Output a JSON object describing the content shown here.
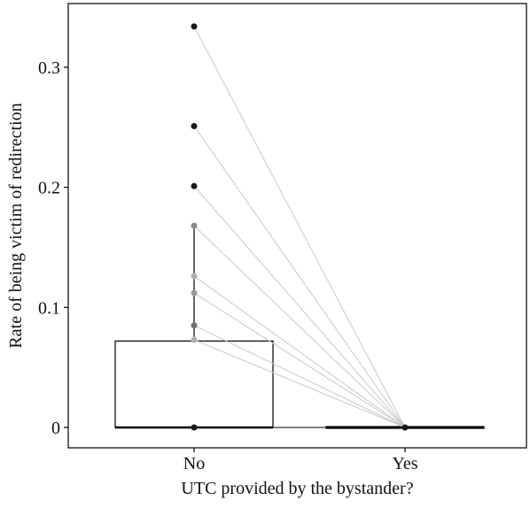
{
  "chart_data": {
    "type": "boxplot",
    "xlabel": "UTC provided by the bystander?",
    "ylabel": "Rate of being victim of redirection",
    "categories": [
      "No",
      "Yes"
    ],
    "ylim": [
      -0.02,
      0.345
    ],
    "yticks": [
      {
        "value": 0,
        "label": "0"
      },
      {
        "value": 0.1,
        "label": "0.1"
      },
      {
        "value": 0.2,
        "label": "0.2"
      },
      {
        "value": 0.3,
        "label": "0.3"
      }
    ],
    "boxes": [
      {
        "category": "No",
        "min": 0,
        "q1": 0,
        "median": 0,
        "q3": 0.072,
        "whisker_high": 0.168
      },
      {
        "category": "Yes",
        "min": 0,
        "q1": 0,
        "median": 0,
        "q3": 0,
        "whisker_high": 0
      }
    ],
    "points_no": [
      0.334,
      0.251,
      0.201,
      0.168,
      0.126,
      0.112,
      0.085,
      0.073,
      0
    ],
    "points_yes": [
      0
    ],
    "paired_lines": [
      0.334,
      0.251,
      0.201,
      0.168,
      0.126,
      0.112,
      0.085,
      0.073
    ],
    "grid": false,
    "legend": "none"
  }
}
